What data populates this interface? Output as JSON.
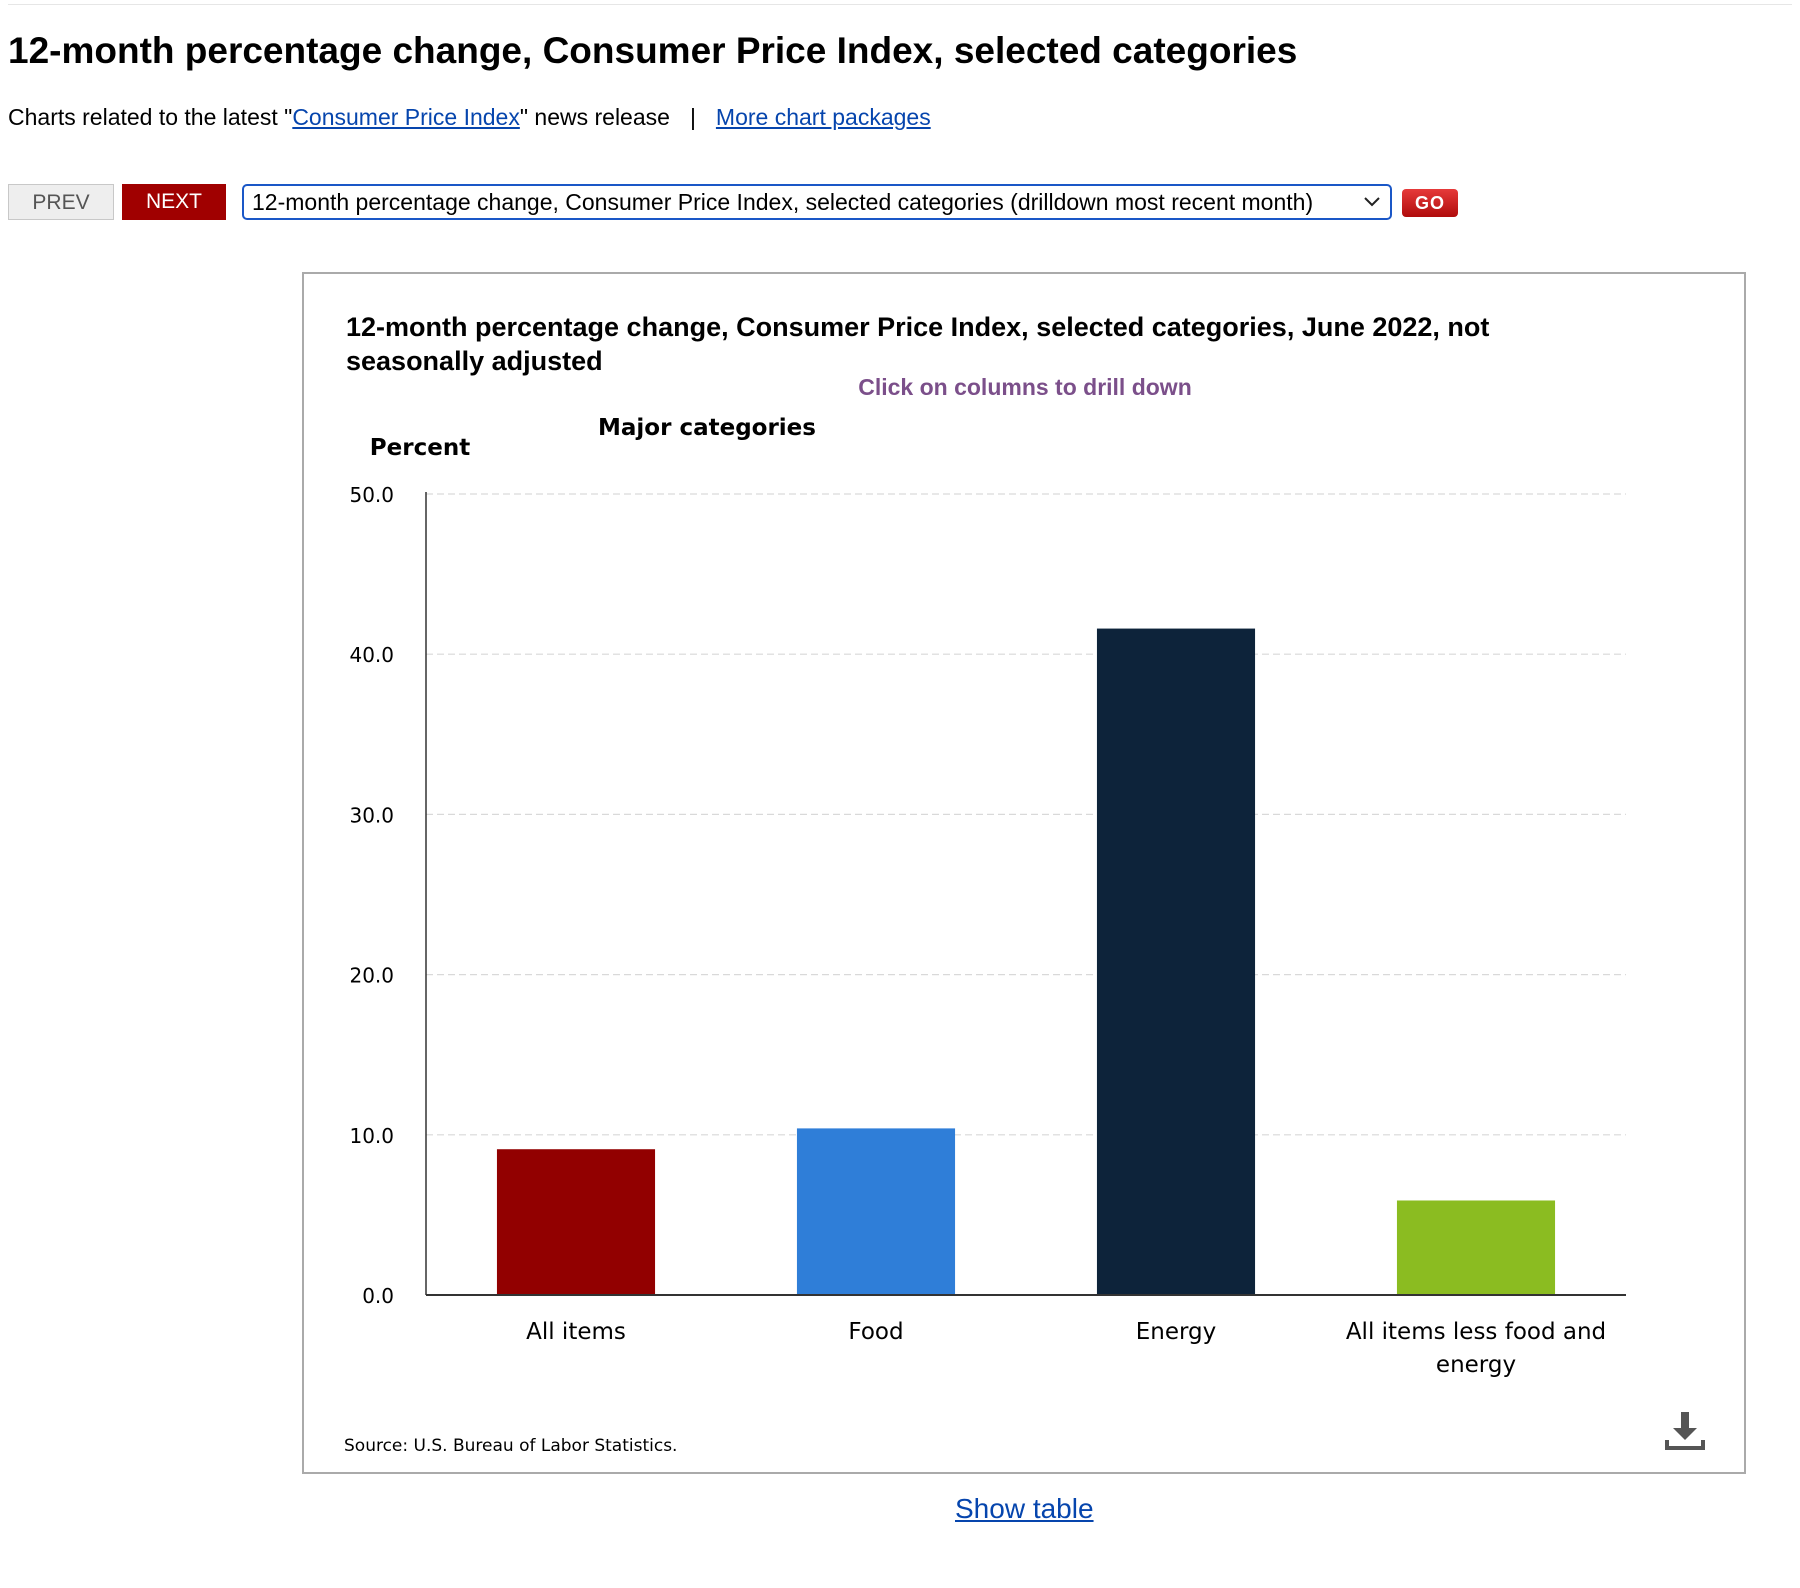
{
  "page": {
    "title": "12-month percentage change, Consumer Price Index, selected categories",
    "subtitle_prefix": "Charts related to the latest \"",
    "subtitle_link": "Consumer Price Index",
    "subtitle_suffix": "\" news release",
    "separator": "|",
    "more_link": "More chart packages"
  },
  "nav": {
    "prev_label": "PREV",
    "next_label": "NEXT",
    "select_value": "12-month percentage change, Consumer Price Index, selected categories (drilldown most recent month)",
    "go_label": "GO"
  },
  "chart_data": {
    "type": "bar",
    "title_line1": "12-month percentage change, Consumer Price Index, selected categories, June 2022, not",
    "title_line2": "seasonally adjusted",
    "drill_hint": "Click on columns to drill down",
    "subtitle": "Major categories",
    "ylabel": "Percent",
    "ylim": [
      0,
      50
    ],
    "yticks": [
      "0.0",
      "10.0",
      "20.0",
      "30.0",
      "40.0",
      "50.0"
    ],
    "grid": true,
    "categories": [
      {
        "label_lines": [
          "All items"
        ],
        "value": 9.1,
        "color": "#920000"
      },
      {
        "label_lines": [
          "Food"
        ],
        "value": 10.4,
        "color": "#2f7ed8"
      },
      {
        "label_lines": [
          "Energy"
        ],
        "value": 41.6,
        "color": "#0d233a"
      },
      {
        "label_lines": [
          "All items less food and",
          "energy"
        ],
        "value": 5.9,
        "color": "#8bbc21"
      }
    ],
    "source": "Source: U.S. Bureau of Labor Statistics."
  },
  "footer": {
    "show_table_label": "Show table"
  },
  "icons": {
    "download": "download-icon",
    "dropdown": "chevron-down-icon"
  }
}
